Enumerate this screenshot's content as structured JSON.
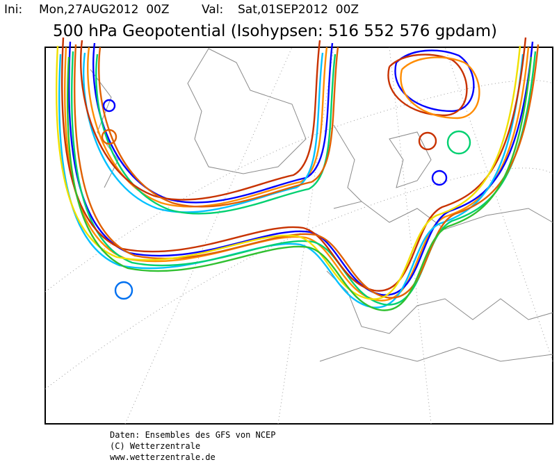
{
  "header": {
    "init_label": "Ini:",
    "init_time": "Mon,27AUG2012  00Z",
    "valid_label": "Val:",
    "valid_time": "Sat,01SEP2012  00Z",
    "title": "500 hPa Geopotential (Isohypsen: 516 552 576 gpdam)"
  },
  "footer": [
    "Daten: Ensembles des GFS von NCEP",
    "(C) Wetterzentrale",
    "www.wetterzentrale.de"
  ]
}
